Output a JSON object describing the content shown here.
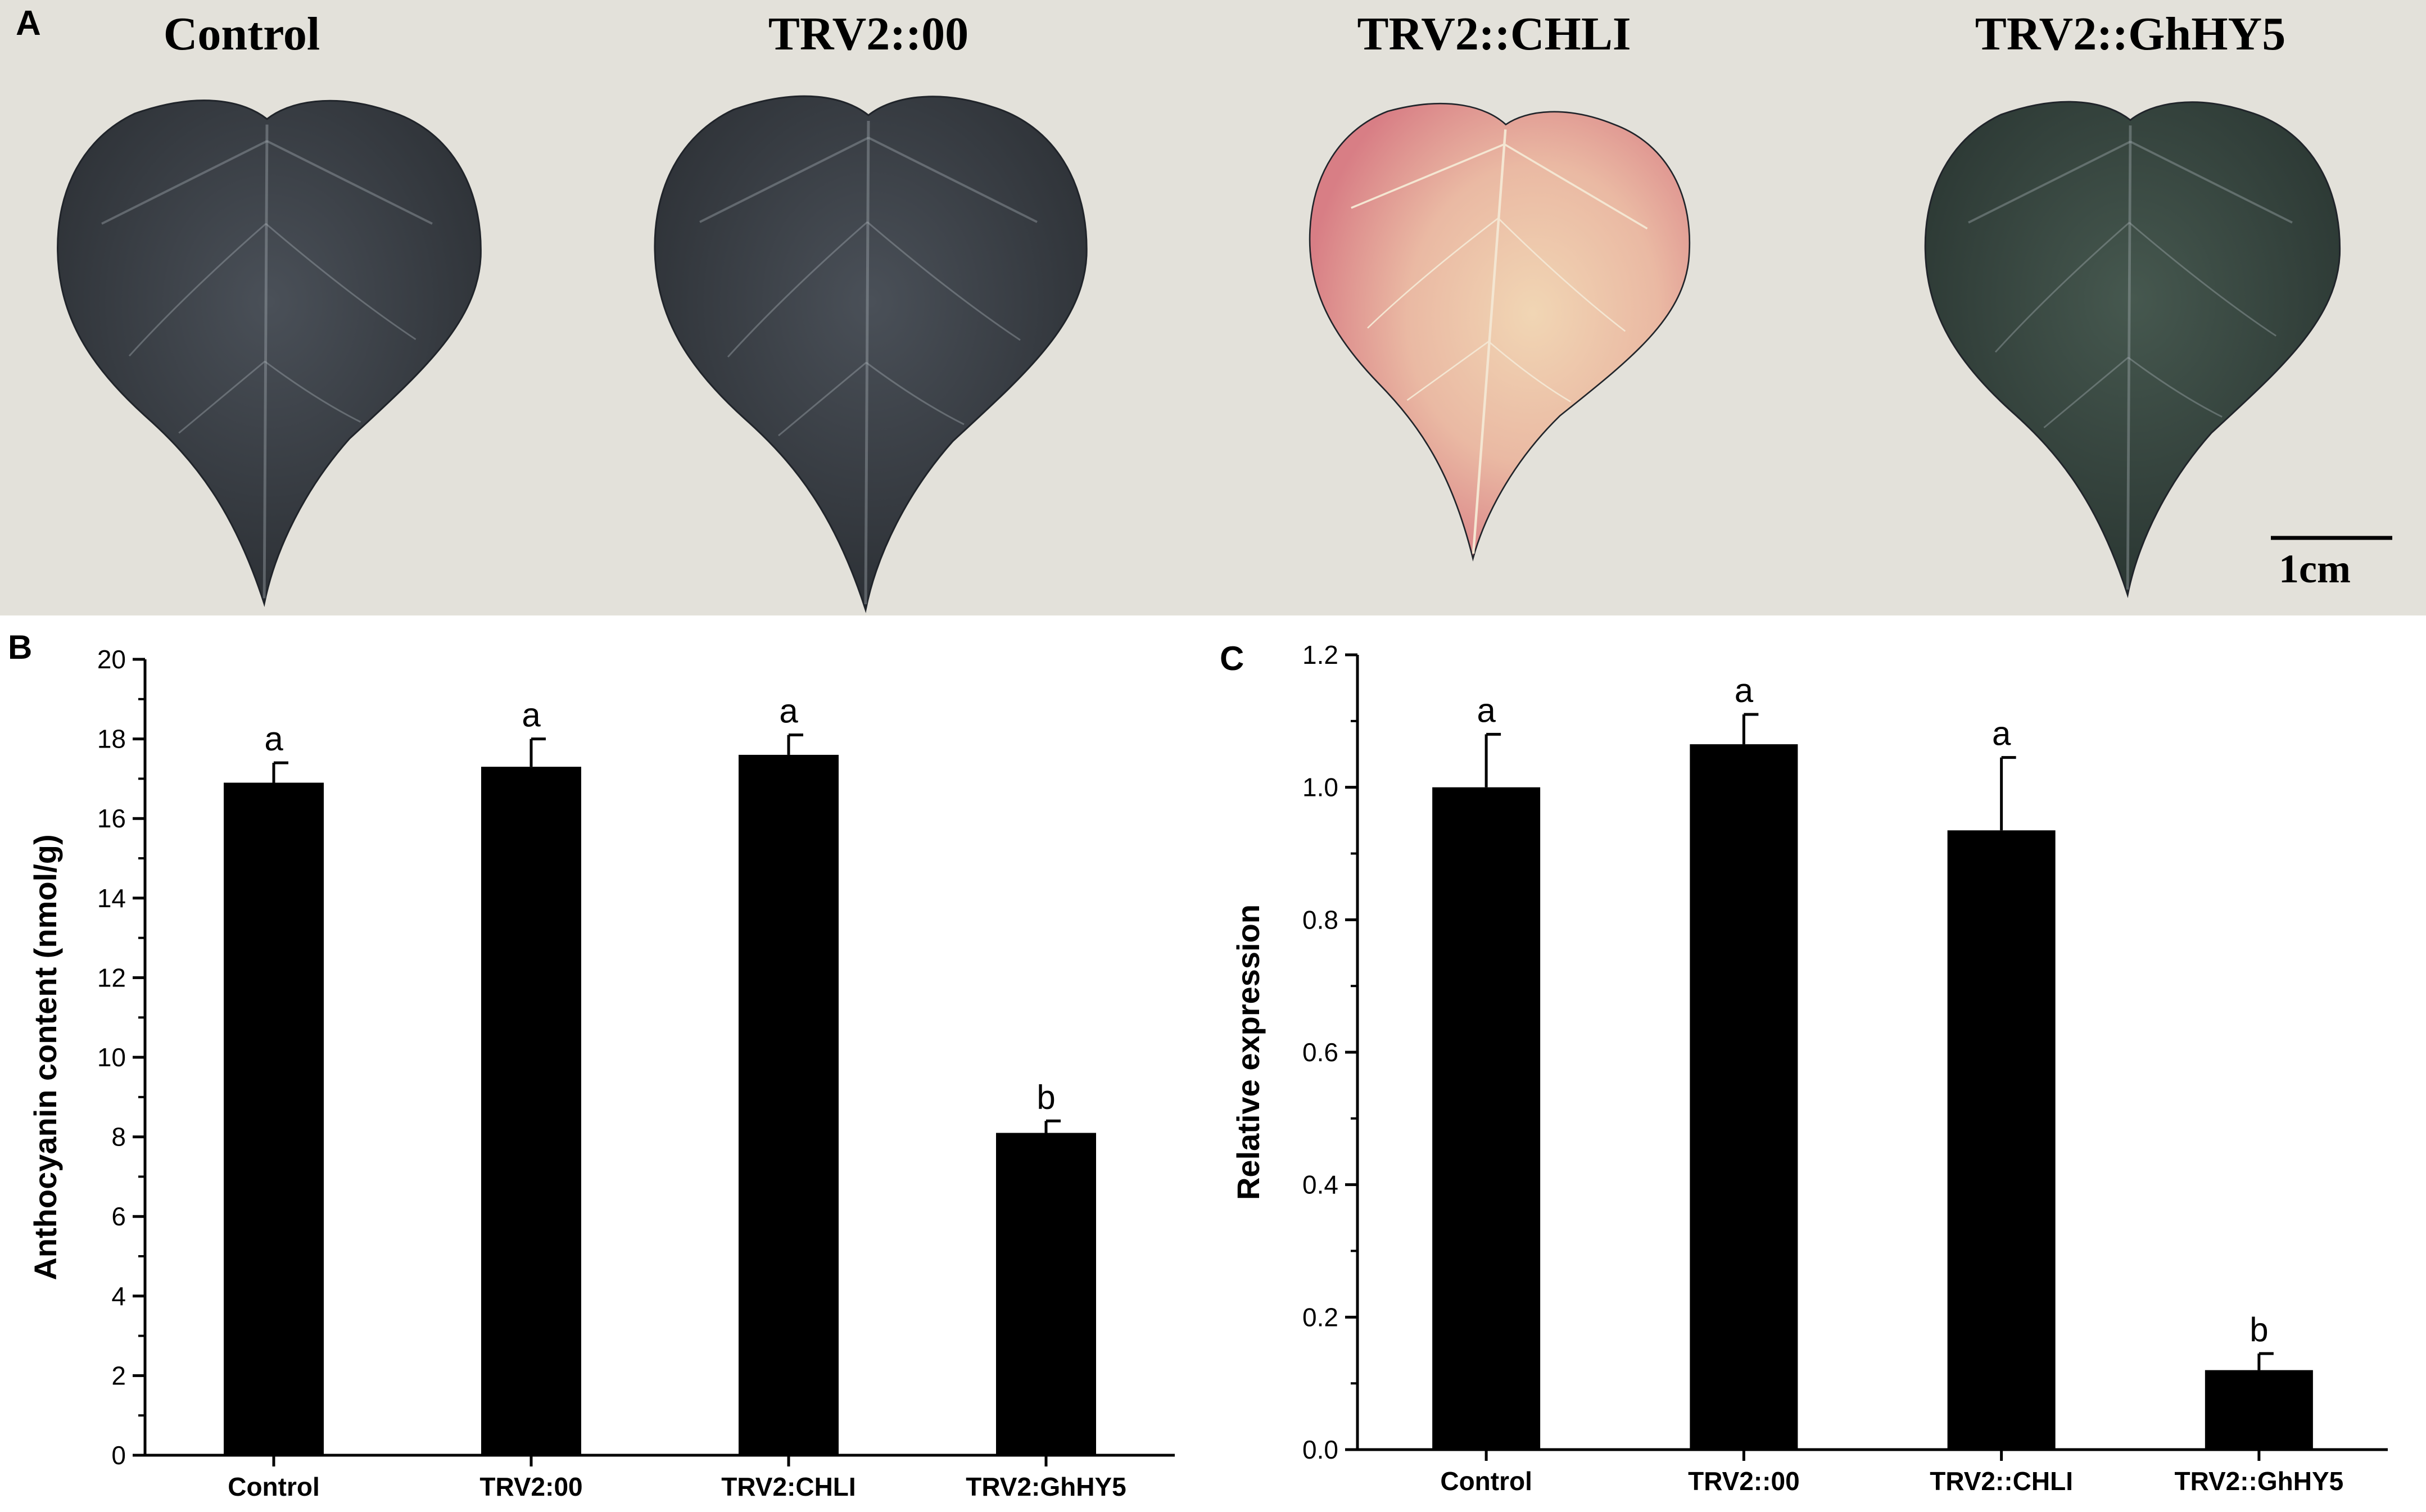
{
  "panel_a": {
    "letter": "A",
    "labels": [
      "Control",
      "TRV2::00",
      "TRV2::CHLI",
      "TRV2::GhHY5"
    ],
    "leaf_colors": [
      "#3e4348",
      "#42474f",
      "#e8b8a4",
      "#3b4a45"
    ],
    "scale_bar_label": "1cm"
  },
  "panel_b": {
    "letter": "B"
  },
  "panel_c": {
    "letter": "C"
  },
  "chart_data": [
    {
      "type": "bar",
      "panel": "B",
      "categories": [
        "Control",
        "TRV2:00",
        "TRV2:CHLI",
        "TRV2:GhHY5"
      ],
      "values": [
        16.9,
        17.3,
        17.6,
        8.1
      ],
      "errors": [
        0.5,
        0.7,
        0.5,
        0.3
      ],
      "significance": [
        "a",
        "a",
        "a",
        "b"
      ],
      "ylabel": "Anthocyanin content (nmol/g)",
      "xlabel": "",
      "ylim": [
        0,
        20
      ],
      "yticks": [
        0,
        2,
        4,
        6,
        8,
        10,
        12,
        14,
        16,
        18,
        20
      ],
      "ytick_labels": [
        "0",
        "2",
        "4",
        "6",
        "8",
        "10",
        "12",
        "14",
        "16",
        "18",
        "20"
      ],
      "bar_color": "#000000",
      "grid": false
    },
    {
      "type": "bar",
      "panel": "C",
      "categories": [
        "Control",
        "TRV2::00",
        "TRV2::CHLI",
        "TRV2::GhHY5"
      ],
      "values": [
        1.0,
        1.065,
        0.935,
        0.12
      ],
      "errors": [
        0.08,
        0.045,
        0.11,
        0.025
      ],
      "significance": [
        "a",
        "a",
        "a",
        "b"
      ],
      "ylabel": "Relative expression",
      "xlabel": "",
      "ylim": [
        0,
        1.2
      ],
      "yticks": [
        0,
        0.2,
        0.4,
        0.6,
        0.8,
        1.0,
        1.2
      ],
      "ytick_labels": [
        "0.0",
        "0.2",
        "0.4",
        "0.6",
        "0.8",
        "1.0",
        "1.2"
      ],
      "bar_color": "#000000",
      "grid": false
    }
  ]
}
